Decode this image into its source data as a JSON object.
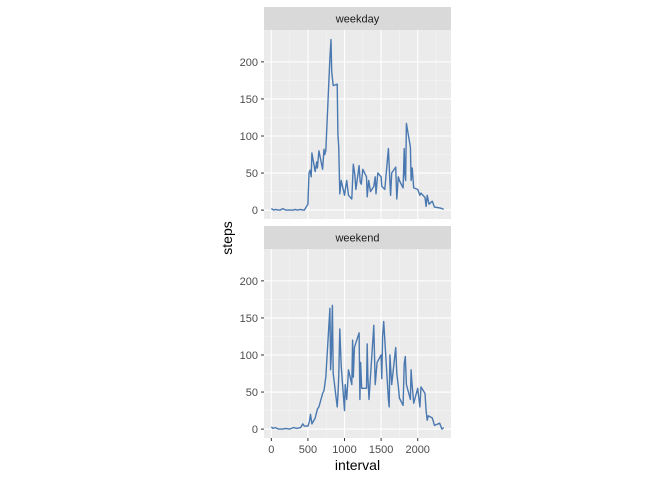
{
  "chart_data": {
    "type": "line",
    "xlabel": "interval",
    "ylabel": "steps",
    "xlim": [
      -100,
      2455
    ],
    "ylim": [
      -12,
      243
    ],
    "xticks": [
      0,
      500,
      1000,
      1500,
      2000
    ],
    "xtick_labels": [
      "0",
      "500",
      "1000",
      "1500",
      "2000"
    ],
    "yticks": [
      0,
      50,
      100,
      150,
      200
    ],
    "ytick_labels": [
      "0",
      "50",
      "100",
      "150",
      "200"
    ],
    "grid": true,
    "line_color": "#4a78b0",
    "panel_bg": "#ebebeb",
    "strip_bg": "#d9d9d9",
    "facets": [
      {
        "strip": "weekday",
        "x": [
          0,
          35,
          55,
          100,
          120,
          155,
          200,
          230,
          255,
          300,
          330,
          355,
          400,
          430,
          450,
          500,
          515,
          530,
          545,
          555,
          600,
          620,
          630,
          650,
          700,
          720,
          730,
          745,
          800,
          815,
          825,
          835,
          845,
          900,
          910,
          920,
          935,
          955,
          1000,
          1010,
          1030,
          1055,
          1100,
          1120,
          1140,
          1155,
          1200,
          1215,
          1230,
          1250,
          1300,
          1310,
          1330,
          1355,
          1400,
          1420,
          1430,
          1455,
          1500,
          1510,
          1530,
          1550,
          1600,
          1620,
          1630,
          1645,
          1700,
          1715,
          1735,
          1750,
          1800,
          1815,
          1825,
          1835,
          1845,
          1900,
          1910,
          1925,
          1945,
          2000,
          2030,
          2045,
          2100,
          2115,
          2130,
          2155,
          2200,
          2230,
          2300,
          2330,
          2355
        ],
        "y": [
          2,
          0,
          1,
          0,
          0,
          2,
          0,
          0,
          0,
          0,
          1,
          0,
          1,
          0,
          0,
          8,
          50,
          54,
          45,
          77,
          52,
          65,
          57,
          80,
          55,
          82,
          75,
          80,
          205,
          230,
          187,
          178,
          168,
          170,
          103,
          86,
          22,
          40,
          20,
          27,
          40,
          20,
          15,
          62,
          48,
          28,
          60,
          38,
          35,
          55,
          45,
          18,
          40,
          25,
          32,
          45,
          22,
          50,
          45,
          32,
          30,
          28,
          83,
          38,
          20,
          50,
          58,
          15,
          45,
          40,
          30,
          83,
          48,
          40,
          117,
          85,
          40,
          57,
          30,
          28,
          20,
          23,
          17,
          5,
          20,
          8,
          12,
          4,
          3,
          2,
          1
        ]
      },
      {
        "strip": "weekend",
        "x": [
          0,
          25,
          55,
          100,
          150,
          200,
          250,
          300,
          350,
          400,
          430,
          450,
          500,
          520,
          535,
          555,
          600,
          630,
          650,
          700,
          720,
          745,
          800,
          810,
          820,
          835,
          845,
          900,
          910,
          920,
          935,
          955,
          1000,
          1010,
          1030,
          1055,
          1100,
          1110,
          1120,
          1135,
          1200,
          1210,
          1220,
          1235,
          1300,
          1310,
          1320,
          1335,
          1400,
          1410,
          1420,
          1445,
          1500,
          1510,
          1520,
          1535,
          1600,
          1610,
          1620,
          1645,
          1700,
          1715,
          1735,
          1750,
          1800,
          1815,
          1830,
          1845,
          1900,
          1910,
          1920,
          1945,
          2000,
          2015,
          2030,
          2045,
          2100,
          2115,
          2130,
          2145,
          2200,
          2230,
          2300,
          2330,
          2355
        ],
        "y": [
          3,
          1,
          2,
          0,
          0,
          1,
          0,
          2,
          1,
          2,
          7,
          4,
          4,
          10,
          20,
          7,
          15,
          27,
          30,
          48,
          52,
          70,
          163,
          80,
          100,
          167,
          75,
          30,
          45,
          70,
          135,
          85,
          25,
          60,
          40,
          80,
          60,
          120,
          70,
          110,
          130,
          40,
          90,
          55,
          55,
          115,
          70,
          40,
          140,
          100,
          60,
          90,
          100,
          68,
          125,
          145,
          40,
          30,
          100,
          60,
          110,
          75,
          58,
          42,
          32,
          88,
          98,
          60,
          40,
          80,
          65,
          35,
          55,
          42,
          30,
          57,
          48,
          25,
          12,
          18,
          15,
          5,
          8,
          0,
          2
        ]
      }
    ]
  }
}
